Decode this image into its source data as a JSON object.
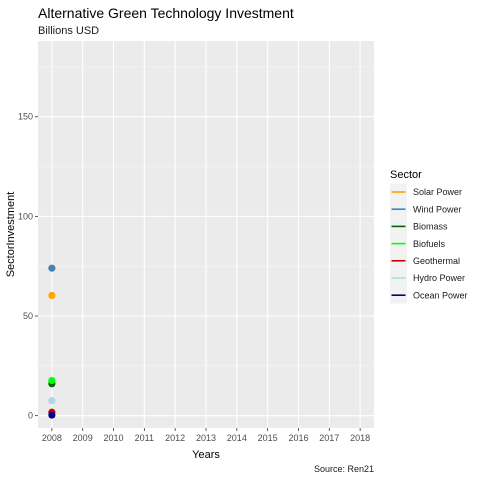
{
  "chart_data": {
    "type": "scatter",
    "title": "Alternative Green Technology Investment",
    "subtitle": "Billions USD",
    "xlabel": "Years",
    "ylabel": "SectorInvestment",
    "caption": "Source: Ren21",
    "x_ticks": [
      "2008",
      "2009",
      "2010",
      "2011",
      "2012",
      "2013",
      "2014",
      "2015",
      "2016",
      "2017",
      "2018"
    ],
    "xlim": [
      2007.55,
      2018.45
    ],
    "y_ticks": [
      0,
      50,
      100,
      150
    ],
    "ylim": [
      -6.2,
      188
    ],
    "grid": true,
    "legend": {
      "title": "Sector",
      "position": "right"
    },
    "series": [
      {
        "name": "Solar Power",
        "color": "#FFA500",
        "points": [
          {
            "x": 2008,
            "y": 60.3
          }
        ]
      },
      {
        "name": "Wind Power",
        "color": "#4682B4",
        "points": [
          {
            "x": 2008,
            "y": 74
          }
        ]
      },
      {
        "name": "Biomass",
        "color": "#006400",
        "points": [
          {
            "x": 2008,
            "y": 16
          }
        ]
      },
      {
        "name": "Biofuels",
        "color": "#00FF00",
        "points": [
          {
            "x": 2008,
            "y": 17.6
          }
        ]
      },
      {
        "name": "Geothermal",
        "color": "#CC0000",
        "points": [
          {
            "x": 2008,
            "y": 1.7
          }
        ]
      },
      {
        "name": "Hydro Power",
        "color": "#ADD8E6",
        "points": [
          {
            "x": 2008,
            "y": 7.5
          }
        ]
      },
      {
        "name": "Ocean Power",
        "color": "#00008B",
        "points": [
          {
            "x": 2008,
            "y": 0.3
          }
        ]
      }
    ]
  }
}
